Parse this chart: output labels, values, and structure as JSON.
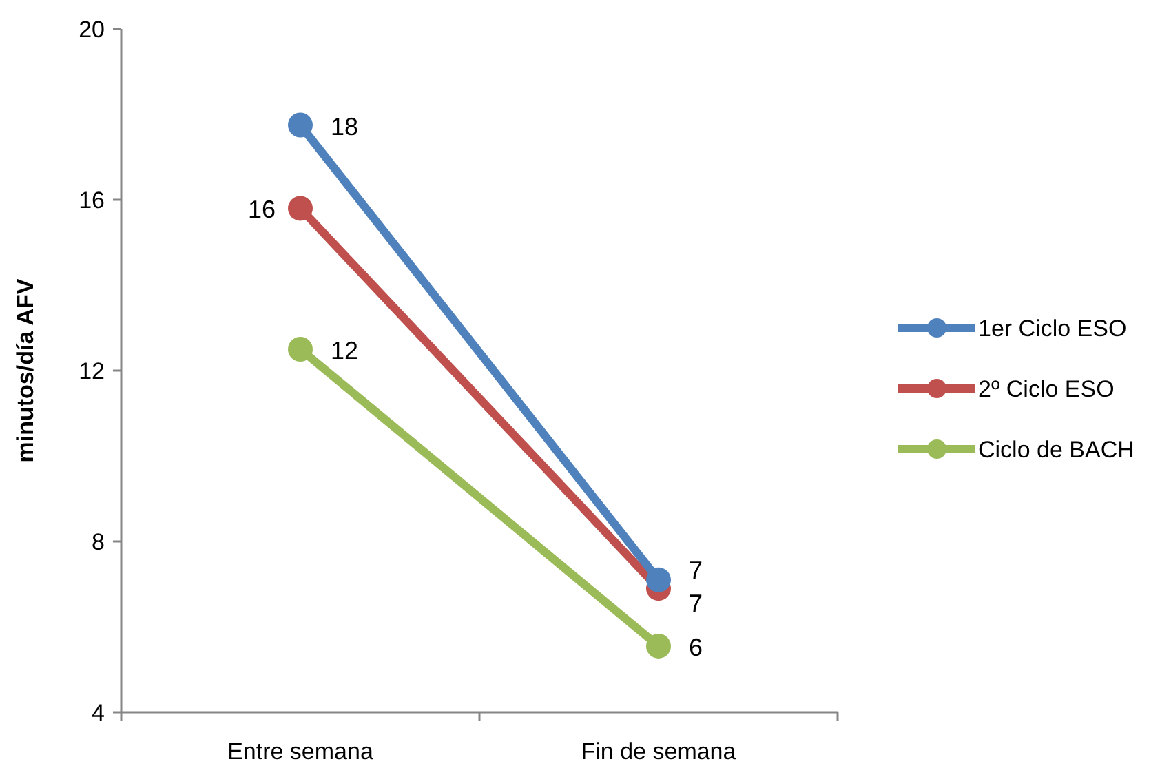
{
  "chart_data": {
    "type": "line",
    "ylabel": "minutos/día AFV",
    "categories": [
      "Entre semana",
      "Fin de semana"
    ],
    "series": [
      {
        "name": "1er Ciclo ESO",
        "color": "#4f81bd",
        "values": [
          17.75,
          7.1
        ],
        "value_labels": [
          "18",
          "7"
        ]
      },
      {
        "name": "2º Ciclo ESO",
        "color": "#c0504d",
        "values": [
          15.8,
          6.9
        ],
        "value_labels": [
          "16",
          "7"
        ]
      },
      {
        "name": "Ciclo de BACH",
        "color": "#9bbb59",
        "values": [
          12.5,
          5.55
        ],
        "value_labels": [
          "12",
          "6"
        ]
      }
    ],
    "ylim": [
      4,
      20
    ],
    "yticks": [
      4,
      8,
      12,
      16,
      20
    ],
    "grid": false,
    "legend": "right",
    "marker": "circle",
    "line_style": "solid"
  }
}
